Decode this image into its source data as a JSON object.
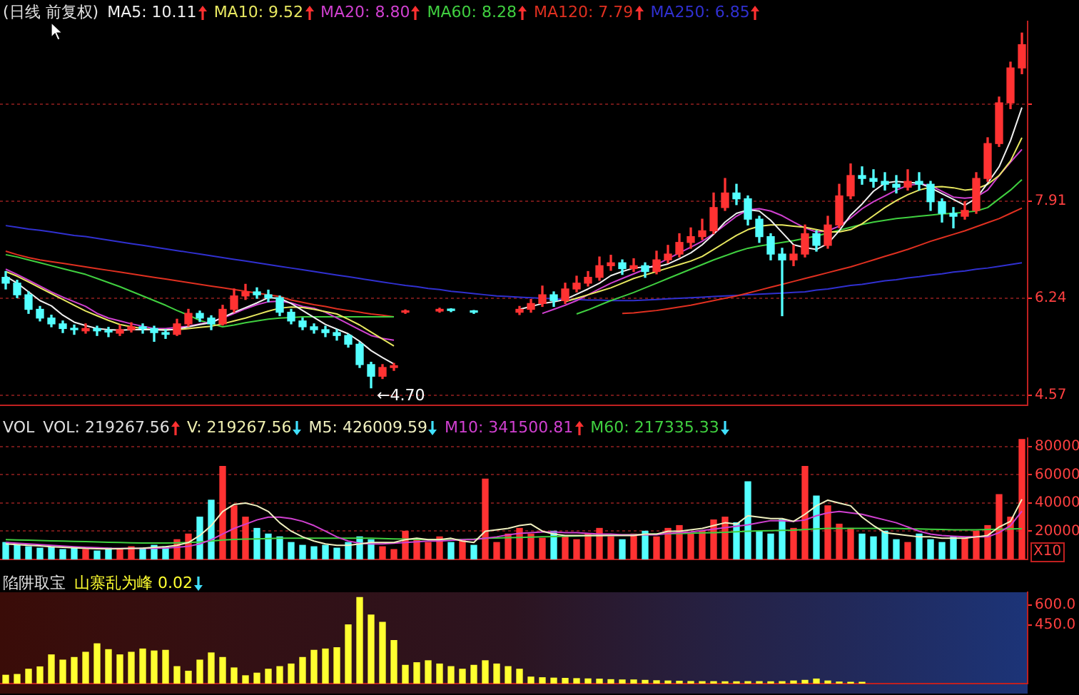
{
  "chart_data": [
    {
      "type": "candlestick",
      "title": "(日线 前复权)",
      "legend": "top left",
      "tick_labels": "y",
      "grid": "y",
      "ylim": [
        4.4,
        11.0
      ],
      "yticks": [
        4.57,
        6.24,
        7.91,
        {
          "value": 9.58,
          "label": null
        }
      ],
      "categories": [
        null,
        null,
        null,
        null,
        null,
        null,
        null,
        null,
        null,
        null,
        null,
        null,
        null,
        null,
        null,
        null,
        null,
        null,
        null,
        null,
        null,
        null,
        null,
        null,
        null,
        null,
        null,
        null,
        null,
        null,
        null,
        null,
        null,
        null,
        null,
        null,
        null,
        null,
        null,
        null,
        null,
        null,
        null,
        null,
        null,
        null,
        null,
        null,
        null,
        null,
        null,
        null,
        null,
        null,
        null,
        null,
        null,
        null,
        null,
        null,
        null,
        null,
        null,
        null,
        null,
        null,
        null,
        null,
        null,
        null,
        null,
        null,
        null,
        null,
        null,
        null,
        null,
        null,
        null,
        null,
        null,
        null,
        null,
        null,
        null,
        null,
        null,
        null,
        null,
        null
      ],
      "ohlc": [
        [
          6.6,
          6.7,
          6.4,
          6.5
        ],
        [
          6.5,
          6.55,
          6.25,
          6.3
        ],
        [
          6.3,
          6.35,
          5.98,
          6.05
        ],
        [
          6.05,
          6.1,
          5.85,
          5.9
        ],
        [
          5.9,
          5.95,
          5.75,
          5.8
        ],
        [
          5.8,
          5.85,
          5.65,
          5.72
        ],
        [
          5.72,
          5.78,
          5.62,
          5.7
        ],
        [
          5.68,
          5.8,
          5.64,
          5.72
        ],
        [
          5.72,
          5.76,
          5.6,
          5.68
        ],
        [
          5.68,
          5.74,
          5.58,
          5.66
        ],
        [
          5.64,
          5.78,
          5.6,
          5.7
        ],
        [
          5.7,
          5.82,
          5.66,
          5.75
        ],
        [
          5.75,
          5.8,
          5.64,
          5.72
        ],
        [
          5.72,
          5.76,
          5.5,
          5.65
        ],
        [
          5.65,
          5.7,
          5.55,
          5.62
        ],
        [
          5.62,
          5.88,
          5.6,
          5.8
        ],
        [
          5.8,
          6.05,
          5.76,
          5.98
        ],
        [
          5.98,
          6.02,
          5.84,
          5.9
        ],
        [
          5.9,
          5.94,
          5.7,
          5.8
        ],
        [
          5.8,
          6.12,
          5.78,
          6.05
        ],
        [
          6.05,
          6.4,
          6.0,
          6.28
        ],
        [
          6.28,
          6.48,
          6.22,
          6.35
        ],
        [
          6.35,
          6.42,
          6.24,
          6.3
        ],
        [
          6.3,
          6.38,
          6.18,
          6.25
        ],
        [
          6.25,
          6.28,
          5.94,
          6.0
        ],
        [
          6.0,
          6.05,
          5.8,
          5.85
        ],
        [
          5.85,
          5.9,
          5.7,
          5.75
        ],
        [
          5.75,
          5.8,
          5.64,
          5.7
        ],
        [
          5.7,
          5.76,
          5.58,
          5.65
        ],
        [
          5.65,
          5.7,
          5.52,
          5.6
        ],
        [
          5.6,
          5.62,
          5.4,
          5.45
        ],
        [
          5.45,
          5.48,
          5.05,
          5.1
        ],
        [
          5.1,
          5.14,
          4.7,
          4.9
        ],
        [
          4.9,
          5.1,
          4.86,
          5.05
        ],
        [
          5.05,
          5.12,
          5.0,
          5.08
        ],
        [
          6.0,
          6.04,
          5.98,
          6.02
        ],
        null,
        null,
        [
          6.02,
          6.07,
          6.0,
          6.05
        ],
        [
          6.05,
          6.06,
          6.01,
          6.03
        ],
        null,
        [
          6.01,
          6.03,
          5.98,
          6.0
        ],
        null,
        null,
        null,
        [
          6.0,
          6.1,
          5.96,
          6.05
        ],
        [
          6.05,
          6.22,
          6.0,
          6.15
        ],
        [
          6.15,
          6.45,
          6.1,
          6.3
        ],
        [
          6.3,
          6.35,
          6.1,
          6.2
        ],
        [
          6.2,
          6.5,
          6.15,
          6.4
        ],
        [
          6.4,
          6.62,
          6.35,
          6.5
        ],
        [
          6.5,
          6.7,
          6.45,
          6.6
        ],
        [
          6.6,
          6.95,
          6.55,
          6.8
        ],
        [
          6.8,
          6.98,
          6.72,
          6.85
        ],
        [
          6.85,
          6.9,
          6.65,
          6.75
        ],
        [
          6.75,
          6.92,
          6.7,
          6.8
        ],
        [
          6.8,
          6.85,
          6.6,
          6.7
        ],
        [
          6.7,
          7.05,
          6.66,
          6.9
        ],
        [
          6.9,
          7.15,
          6.85,
          7.0
        ],
        [
          7.0,
          7.35,
          6.95,
          7.2
        ],
        [
          7.2,
          7.45,
          7.1,
          7.3
        ],
        [
          7.3,
          7.6,
          7.25,
          7.4
        ],
        [
          7.4,
          8.05,
          7.35,
          7.8
        ],
        [
          7.8,
          8.3,
          7.75,
          8.05
        ],
        [
          8.05,
          8.2,
          7.85,
          7.95
        ],
        [
          7.95,
          8.0,
          7.5,
          7.6
        ],
        [
          7.6,
          7.65,
          7.2,
          7.3
        ],
        [
          7.3,
          7.35,
          6.9,
          7.0
        ],
        [
          7.0,
          7.1,
          5.94,
          6.9
        ],
        [
          6.9,
          7.15,
          6.8,
          7.0
        ],
        [
          7.0,
          7.5,
          6.95,
          7.35
        ],
        [
          7.35,
          7.4,
          7.05,
          7.15
        ],
        [
          7.15,
          7.65,
          7.1,
          7.5
        ],
        [
          7.5,
          8.2,
          7.45,
          8.0
        ],
        [
          8.0,
          8.55,
          7.95,
          8.35
        ],
        [
          8.35,
          8.5,
          8.2,
          8.3
        ],
        [
          8.3,
          8.45,
          8.15,
          8.25
        ],
        [
          8.25,
          8.4,
          8.1,
          8.2
        ],
        [
          8.2,
          8.35,
          8.05,
          8.15
        ],
        [
          8.15,
          8.45,
          8.1,
          8.25
        ],
        [
          8.25,
          8.4,
          8.1,
          8.2
        ],
        [
          8.2,
          8.25,
          7.75,
          7.9
        ],
        [
          7.9,
          7.95,
          7.55,
          7.7
        ],
        [
          7.7,
          7.8,
          7.45,
          7.65
        ],
        [
          7.65,
          7.9,
          7.6,
          7.75
        ],
        [
          7.75,
          8.4,
          7.7,
          8.3
        ],
        [
          8.3,
          9.0,
          8.25,
          8.9
        ],
        [
          8.9,
          9.7,
          8.85,
          9.6
        ],
        [
          9.6,
          10.3,
          9.5,
          10.2
        ],
        [
          10.2,
          10.8,
          10.1,
          10.6
        ]
      ],
      "colors": [
        "#54ffff",
        "#54ffff",
        "#54ffff",
        "#54ffff",
        "#54ffff",
        "#54ffff",
        "#54ffff",
        "#ff3232",
        "#54ffff",
        "#54ffff",
        "#ff3232",
        "#ff3232",
        "#54ffff",
        "#54ffff",
        "#54ffff",
        "#ff3232",
        "#ff3232",
        "#54ffff",
        "#54ffff",
        "#ff3232",
        "#ff3232",
        "#ff3232",
        "#54ffff",
        "#54ffff",
        "#54ffff",
        "#54ffff",
        "#54ffff",
        "#54ffff",
        "#54ffff",
        "#54ffff",
        "#54ffff",
        "#54ffff",
        "#54ffff",
        "#ff3232",
        "#ff3232",
        "#ff3232",
        "#ff3232",
        "#ff3232",
        "#ff3232",
        "#54ffff",
        "#ff3232",
        "#54ffff",
        "#ff3232",
        "#ff3232",
        "#ff3232",
        "#ff3232",
        "#ff3232",
        "#ff3232",
        "#54ffff",
        "#ff3232",
        "#ff3232",
        "#ff3232",
        "#ff3232",
        "#ff3232",
        "#54ffff",
        "#ff3232",
        "#54ffff",
        "#ff3232",
        "#ff3232",
        "#ff3232",
        "#ff3232",
        "#ff3232",
        "#ff3232",
        "#ff3232",
        "#54ffff",
        "#54ffff",
        "#54ffff",
        "#54ffff",
        "#54ffff",
        "#ff3232",
        "#ff3232",
        "#54ffff",
        "#ff3232",
        "#ff3232",
        "#ff3232",
        "#54ffff",
        "#54ffff",
        "#54ffff",
        "#54ffff",
        "#ff3232",
        "#54ffff",
        "#54ffff",
        "#54ffff",
        "#54ffff",
        "#ff3232",
        "#ff3232",
        "#ff3232",
        "#ff3232",
        "#ff3232",
        "#ff3232"
      ],
      "series": [
        {
          "name": "MA5: 10.11",
          "type": "line",
          "color": "#f0f0f0",
          "values": [
            6.62,
            6.5,
            6.35,
            6.2,
            6.11,
            5.95,
            5.83,
            5.77,
            5.72,
            5.7,
            5.69,
            5.7,
            5.7,
            5.7,
            5.69,
            5.71,
            5.75,
            5.79,
            5.82,
            5.91,
            6.0,
            6.08,
            6.16,
            6.25,
            6.24,
            6.15,
            6.03,
            5.91,
            5.79,
            5.71,
            5.63,
            5.5,
            5.34,
            5.22,
            5.11,
            null,
            null,
            null,
            null,
            null,
            null,
            null,
            null,
            null,
            null,
            6.05,
            6.1,
            6.15,
            6.18,
            6.22,
            6.31,
            6.4,
            6.5,
            6.63,
            6.7,
            6.76,
            6.78,
            6.78,
            6.83,
            6.92,
            7.02,
            7.16,
            7.34,
            7.55,
            7.7,
            7.76,
            7.74,
            7.58,
            7.37,
            7.16,
            7.11,
            7.08,
            7.18,
            7.4,
            7.67,
            7.86,
            8.08,
            8.22,
            8.25,
            8.23,
            8.22,
            8.14,
            8.04,
            7.94,
            7.84,
            7.96,
            8.22,
            8.5,
            8.95,
            9.52
          ]
        },
        {
          "name": "MA10: 9.52",
          "type": "line",
          "color": "#e8e860",
          "values": [
            6.7,
            6.62,
            6.52,
            6.42,
            6.32,
            6.22,
            6.12,
            6.02,
            5.94,
            5.86,
            5.79,
            5.75,
            5.72,
            5.7,
            5.7,
            5.7,
            5.72,
            5.74,
            5.76,
            5.8,
            5.85,
            5.9,
            5.96,
            6.02,
            6.07,
            6.09,
            6.08,
            6.05,
            6.01,
            5.97,
            5.88,
            5.78,
            5.66,
            5.54,
            5.42,
            null,
            null,
            null,
            null,
            null,
            null,
            null,
            null,
            null,
            null,
            null,
            null,
            null,
            null,
            6.18,
            6.24,
            6.3,
            6.36,
            6.42,
            6.5,
            6.58,
            6.64,
            6.7,
            6.76,
            6.82,
            6.88,
            6.96,
            7.08,
            7.2,
            7.32,
            7.42,
            7.48,
            7.5,
            7.5,
            7.48,
            7.46,
            7.42,
            7.38,
            7.38,
            7.42,
            7.52,
            7.66,
            7.8,
            7.92,
            8.02,
            8.1,
            8.15,
            8.16,
            8.14,
            8.1,
            8.12,
            8.2,
            8.35,
            8.6,
            9.0
          ]
        },
        {
          "name": "MA20: 8.80",
          "type": "line",
          "color": "#d040d0",
          "values": [
            6.74,
            6.65,
            6.55,
            6.45,
            6.35,
            6.26,
            6.18,
            6.1,
            5.98,
            5.9,
            5.85,
            5.8,
            5.76,
            5.72,
            5.72,
            5.74,
            5.76,
            5.8,
            5.84,
            5.9,
            5.98,
            6.06,
            6.13,
            6.18,
            6.19,
            6.16,
            6.1,
            6.07,
            6.0,
            5.9,
            5.8,
            5.7,
            5.6,
            5.55,
            5.52,
            null,
            null,
            null,
            null,
            null,
            null,
            null,
            null,
            null,
            null,
            null,
            null,
            5.98,
            6.05,
            6.12,
            6.2,
            6.3,
            6.4,
            6.5,
            6.58,
            6.66,
            6.74,
            6.82,
            6.92,
            7.02,
            7.12,
            7.22,
            7.35,
            7.5,
            7.65,
            7.76,
            7.78,
            7.74,
            7.66,
            7.55,
            7.45,
            7.38,
            7.4,
            7.48,
            7.62,
            7.78,
            7.9,
            8.0,
            8.1,
            8.18,
            8.21,
            8.18,
            8.08,
            7.98,
            7.96,
            7.98,
            8.1,
            8.35,
            8.58,
            8.8
          ]
        },
        {
          "name": "MA60: 8.28",
          "type": "line",
          "color": "#40d040",
          "values": [
            6.99,
            6.95,
            6.9,
            6.85,
            6.8,
            6.75,
            6.7,
            6.65,
            6.58,
            6.51,
            6.44,
            6.36,
            6.28,
            6.2,
            6.12,
            6.03,
            5.95,
            5.86,
            5.8,
            5.75,
            5.78,
            5.82,
            5.85,
            5.88,
            5.9,
            5.91,
            5.92,
            5.92,
            5.92,
            5.92,
            5.92,
            5.92,
            5.92,
            5.92,
            5.92,
            null,
            null,
            null,
            null,
            null,
            null,
            null,
            null,
            null,
            null,
            null,
            null,
            null,
            null,
            null,
            5.97,
            6.04,
            6.12,
            6.2,
            6.27,
            6.34,
            6.42,
            6.5,
            6.58,
            6.66,
            6.74,
            6.82,
            6.9,
            6.97,
            7.04,
            7.1,
            7.14,
            7.17,
            7.2,
            7.23,
            7.27,
            7.31,
            7.36,
            7.41,
            7.46,
            7.51,
            7.55,
            7.58,
            7.61,
            7.63,
            7.65,
            7.67,
            7.69,
            7.7,
            7.72,
            7.74,
            7.8,
            7.95,
            8.1,
            8.28
          ]
        },
        {
          "name": "MA120: 7.79",
          "type": "line",
          "color": "#e03020",
          "values": [
            7.05,
            6.99,
            6.94,
            6.9,
            6.87,
            6.84,
            6.81,
            6.78,
            6.75,
            6.72,
            6.69,
            6.66,
            6.63,
            6.6,
            6.57,
            6.54,
            6.51,
            6.48,
            6.45,
            6.42,
            6.39,
            6.36,
            6.33,
            6.3,
            6.27,
            6.21,
            6.17,
            6.13,
            6.1,
            6.06,
            6.03,
            6.0,
            5.97,
            5.95,
            5.92,
            null,
            null,
            null,
            null,
            null,
            null,
            null,
            null,
            null,
            null,
            null,
            null,
            null,
            null,
            null,
            null,
            null,
            null,
            null,
            5.98,
            5.99,
            6.01,
            6.03,
            6.06,
            6.09,
            6.12,
            6.16,
            6.2,
            6.24,
            6.28,
            6.33,
            6.38,
            6.43,
            6.48,
            6.53,
            6.58,
            6.63,
            6.68,
            6.73,
            6.78,
            6.84,
            6.9,
            6.96,
            7.02,
            7.08,
            7.15,
            7.22,
            7.28,
            7.34,
            7.4,
            7.47,
            7.54,
            7.61,
            7.7,
            7.79
          ]
        },
        {
          "name": "MA250: 6.85",
          "type": "line",
          "color": "#3030d0",
          "values": [
            7.49,
            7.46,
            7.43,
            7.41,
            7.38,
            7.35,
            7.32,
            7.3,
            7.27,
            7.24,
            7.21,
            7.18,
            7.15,
            7.12,
            7.09,
            7.06,
            7.03,
            7.0,
            6.97,
            6.94,
            6.91,
            6.88,
            6.85,
            6.82,
            6.79,
            6.76,
            6.73,
            6.7,
            6.67,
            6.64,
            6.61,
            6.58,
            6.55,
            6.52,
            6.49,
            6.46,
            6.44,
            6.41,
            6.39,
            6.36,
            6.34,
            6.32,
            6.3,
            6.28,
            6.27,
            6.26,
            6.25,
            6.24,
            6.23,
            6.22,
            6.22,
            6.21,
            6.21,
            6.2,
            6.2,
            6.2,
            6.21,
            6.22,
            6.23,
            6.24,
            6.25,
            6.26,
            6.27,
            6.28,
            6.29,
            6.3,
            6.31,
            6.32,
            6.33,
            6.34,
            6.35,
            6.38,
            6.4,
            6.43,
            6.46,
            6.48,
            6.51,
            6.54,
            6.56,
            6.59,
            6.61,
            6.64,
            6.66,
            6.69,
            6.71,
            6.74,
            6.76,
            6.79,
            6.82,
            6.85
          ]
        }
      ],
      "annotations": [
        "←4.70"
      ]
    },
    {
      "type": "bar",
      "title": "VOL",
      "legend": "top left",
      "tick_labels": "y",
      "grid": "y",
      "ylabel": "X10",
      "ylim": [
        0,
        86000
      ],
      "yticks": [
        20000,
        40000,
        60000,
        80000
      ],
      "annotations": [
        "VOL: 219267.56",
        "V: 219267.56"
      ],
      "categories": [
        null,
        null,
        null,
        null,
        null,
        null,
        null,
        null,
        null,
        null,
        null,
        null,
        null,
        null,
        null,
        null,
        null,
        null,
        null,
        null,
        null,
        null,
        null,
        null,
        null,
        null,
        null,
        null,
        null,
        null,
        null,
        null,
        null,
        null,
        null,
        null,
        null,
        null,
        null,
        null,
        null,
        null,
        null,
        null,
        null,
        null,
        null,
        null,
        null,
        null,
        null,
        null,
        null,
        null,
        null,
        null,
        null,
        null,
        null,
        null,
        null,
        null,
        null,
        null,
        null,
        null,
        null,
        null,
        null,
        null,
        null,
        null,
        null,
        null,
        null,
        null,
        null,
        null,
        null,
        null,
        null,
        null,
        null,
        null,
        null,
        null,
        null,
        null,
        null,
        null
      ],
      "values": [
        12000,
        10000,
        9000,
        8000,
        9000,
        7000,
        8000,
        7000,
        6000,
        8000,
        7000,
        9000,
        8000,
        10000,
        9000,
        14000,
        18000,
        30000,
        42000,
        66000,
        38000,
        30000,
        22000,
        18000,
        16000,
        12000,
        10000,
        9000,
        10000,
        8000,
        12000,
        16000,
        14000,
        9000,
        7000,
        20000,
        14000,
        12000,
        16000,
        12000,
        14000,
        10000,
        57000,
        12000,
        18000,
        22000,
        18000,
        15000,
        20000,
        16000,
        14000,
        18000,
        22000,
        16000,
        14000,
        18000,
        20000,
        16000,
        22000,
        24000,
        18000,
        20000,
        28000,
        30000,
        26000,
        55000,
        20000,
        18000,
        28000,
        22000,
        66000,
        45000,
        38000,
        25000,
        22000,
        18000,
        16000,
        20000,
        14000,
        12000,
        18000,
        14000,
        12000,
        16000,
        15000,
        20000,
        24000,
        46000,
        30000,
        85000
      ],
      "colors": [
        "#54ffff",
        "#54ffff",
        "#54ffff",
        "#54ffff",
        "#54ffff",
        "#54ffff",
        "#54ffff",
        "#ff3232",
        "#54ffff",
        "#54ffff",
        "#ff3232",
        "#ff3232",
        "#54ffff",
        "#54ffff",
        "#54ffff",
        "#ff3232",
        "#ff3232",
        "#54ffff",
        "#54ffff",
        "#ff3232",
        "#ff3232",
        "#ff3232",
        "#54ffff",
        "#54ffff",
        "#54ffff",
        "#54ffff",
        "#54ffff",
        "#54ffff",
        "#54ffff",
        "#54ffff",
        "#54ffff",
        "#54ffff",
        "#54ffff",
        "#ff3232",
        "#ff3232",
        "#ff3232",
        "#ff3232",
        "#ff3232",
        "#ff3232",
        "#54ffff",
        "#ff3232",
        "#54ffff",
        "#ff3232",
        "#ff3232",
        "#ff3232",
        "#ff3232",
        "#ff3232",
        "#ff3232",
        "#54ffff",
        "#ff3232",
        "#ff3232",
        "#ff3232",
        "#ff3232",
        "#ff3232",
        "#54ffff",
        "#ff3232",
        "#54ffff",
        "#ff3232",
        "#ff3232",
        "#ff3232",
        "#ff3232",
        "#ff3232",
        "#ff3232",
        "#ff3232",
        "#54ffff",
        "#54ffff",
        "#54ffff",
        "#54ffff",
        "#54ffff",
        "#ff3232",
        "#ff3232",
        "#54ffff",
        "#ff3232",
        "#ff3232",
        "#ff3232",
        "#54ffff",
        "#54ffff",
        "#54ffff",
        "#54ffff",
        "#ff3232",
        "#54ffff",
        "#54ffff",
        "#54ffff",
        "#54ffff",
        "#ff3232",
        "#ff3232",
        "#ff3232",
        "#ff3232",
        "#ff3232",
        "#ff3232"
      ],
      "series": [
        {
          "name": "M5: 426009.59",
          "type": "line",
          "color": "#f0f0c0",
          "values": [
            11000,
            10500,
            10000,
            9600,
            9000,
            8600,
            8200,
            7800,
            7600,
            7400,
            7600,
            7800,
            8000,
            8600,
            9000,
            10000,
            12000,
            17000,
            24000,
            34000,
            39000,
            40000,
            38000,
            34000,
            26000,
            20000,
            16000,
            13000,
            11000,
            10000,
            10000,
            11000,
            12000,
            12000,
            12000,
            14000,
            15000,
            14000,
            14000,
            15000,
            13000,
            12000,
            20000,
            21000,
            22000,
            24000,
            25000,
            20000,
            18000,
            17000,
            17000,
            17000,
            17000,
            17000,
            17000,
            17000,
            18000,
            18000,
            20000,
            20000,
            21000,
            22000,
            24000,
            26000,
            25000,
            31000,
            30000,
            29000,
            29000,
            27000,
            32000,
            38000,
            42000,
            40000,
            38000,
            30000,
            24000,
            19000,
            18000,
            17000,
            16000,
            16000,
            15000,
            15000,
            15000,
            16000,
            17000,
            23000,
            27000,
            42600
          ]
        },
        {
          "name": "M10: 341500.81",
          "type": "line",
          "color": "#d040d0",
          "values": [
            12000,
            11500,
            11000,
            10500,
            10000,
            9500,
            9000,
            8600,
            8300,
            8000,
            7900,
            7800,
            7800,
            7900,
            8100,
            8600,
            9300,
            11000,
            14000,
            18000,
            22000,
            25000,
            28000,
            30000,
            30000,
            29000,
            27000,
            24000,
            20000,
            16000,
            13000,
            11500,
            11000,
            11000,
            11500,
            12000,
            12500,
            13000,
            13000,
            13500,
            14000,
            14000,
            15000,
            16000,
            17500,
            18500,
            19000,
            19500,
            19500,
            19000,
            19000,
            18500,
            18000,
            18000,
            17500,
            17500,
            17500,
            17500,
            18500,
            19000,
            19500,
            20500,
            21500,
            22500,
            23500,
            24500,
            26000,
            27500,
            27500,
            27000,
            28000,
            31000,
            33000,
            34000,
            33000,
            32000,
            30000,
            28000,
            26000,
            23000,
            20000,
            18000,
            17000,
            16500,
            16000,
            16000,
            16000,
            19000,
            24000,
            34150
          ]
        },
        {
          "name": "M60: 217335.33",
          "type": "line",
          "color": "#40d040",
          "values": [
            14000,
            13800,
            13600,
            13400,
            13200,
            13000,
            12800,
            12600,
            12400,
            12200,
            12000,
            11800,
            11600,
            11600,
            11600,
            11800,
            12000,
            12400,
            13000,
            13800,
            14200,
            14400,
            14600,
            14800,
            15000,
            15000,
            15000,
            15000,
            15000,
            15000,
            15000,
            15000,
            15000,
            14800,
            14600,
            14400,
            14200,
            14000,
            14000,
            14000,
            14200,
            14400,
            15000,
            15200,
            15400,
            15600,
            15800,
            16000,
            16200,
            16400,
            16600,
            16800,
            17000,
            17200,
            17400,
            17600,
            17800,
            18000,
            18200,
            18400,
            18600,
            18800,
            19000,
            19200,
            19600,
            20000,
            20200,
            20400,
            20600,
            20800,
            21200,
            21600,
            22000,
            22000,
            22000,
            22000,
            22000,
            22000,
            22000,
            21800,
            21600,
            21400,
            21200,
            21000,
            21000,
            21000,
            21200,
            21400,
            21600,
            21733
          ]
        }
      ]
    },
    {
      "type": "bar",
      "title": "陷阱取宝",
      "legend": "top left",
      "tick_labels": "y",
      "ylim": [
        0,
        700
      ],
      "yticks": [
        {
          "value": 450,
          "label": "450.0"
        },
        {
          "value": 600,
          "label": "600.0"
        }
      ],
      "categories": [
        null,
        null,
        null,
        null,
        null,
        null,
        null,
        null,
        null,
        null,
        null,
        null,
        null,
        null,
        null,
        null,
        null,
        null,
        null,
        null,
        null,
        null,
        null,
        null,
        null,
        null,
        null,
        null,
        null,
        null,
        null,
        null,
        null,
        null,
        null,
        null,
        null,
        null,
        null,
        null,
        null,
        null,
        null,
        null,
        null,
        null,
        null,
        null,
        null,
        null,
        null,
        null,
        null,
        null,
        null,
        null,
        null,
        null,
        null,
        null,
        null,
        null,
        null,
        null,
        null,
        null,
        null,
        null,
        null,
        null,
        null,
        null,
        null,
        null,
        null,
        null,
        null,
        null,
        null,
        null,
        null,
        null,
        null,
        null,
        null,
        null,
        null,
        null,
        null,
        null
      ],
      "series": [
        {
          "name": "山寨乱为峰 0.02",
          "color": "#ffff30",
          "values": [
            64,
            70,
            110,
            128,
            220,
            180,
            200,
            240,
            305,
            260,
            220,
            240,
            265,
            250,
            255,
            130,
            95,
            180,
            235,
            200,
            120,
            60,
            80,
            110,
            130,
            150,
            200,
            255,
            265,
            275,
            450,
            659,
            525,
            470,
            330,
            140,
            160,
            175,
            150,
            130,
            110,
            140,
            175,
            150,
            130,
            110,
            50,
            45,
            42,
            40,
            38,
            36,
            34,
            30,
            28,
            28,
            25,
            22,
            20,
            18,
            16,
            15,
            15,
            14,
            14,
            15,
            15,
            14,
            15,
            20,
            25,
            35,
            20,
            12,
            10,
            10,
            null,
            null,
            null,
            null,
            null,
            null,
            null,
            null,
            null,
            null,
            null,
            null,
            null,
            null
          ]
        }
      ]
    }
  ]
}
